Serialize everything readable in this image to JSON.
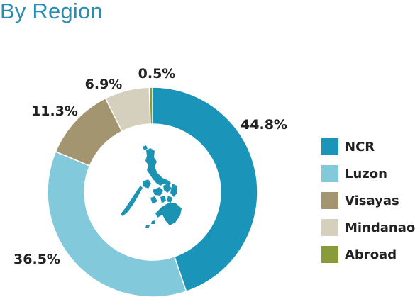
{
  "title": "By Region",
  "chart_data": {
    "type": "pie",
    "donut": true,
    "title": "By Region",
    "legend_position": "right",
    "categories": [
      "NCR",
      "Luzon",
      "Visayas",
      "Mindanao",
      "Abroad"
    ],
    "values": [
      44.8,
      36.5,
      11.3,
      6.9,
      0.5
    ],
    "labels": [
      "44.8%",
      "36.5%",
      "11.3%",
      "6.9%",
      "0.5%"
    ],
    "colors": [
      "#1b94b9",
      "#82c9dc",
      "#a39570",
      "#d5cfbd",
      "#8a9c3a"
    ],
    "center_graphic": "philippines-map",
    "center_graphic_color": "#1d93b4"
  },
  "legend": {
    "items": [
      {
        "label": "NCR",
        "color": "#1b94b9"
      },
      {
        "label": "Luzon",
        "color": "#82c9dc"
      },
      {
        "label": "Visayas",
        "color": "#a39570"
      },
      {
        "label": "Mindanao",
        "color": "#d5cfbd"
      },
      {
        "label": "Abroad",
        "color": "#8a9c3a"
      }
    ]
  }
}
